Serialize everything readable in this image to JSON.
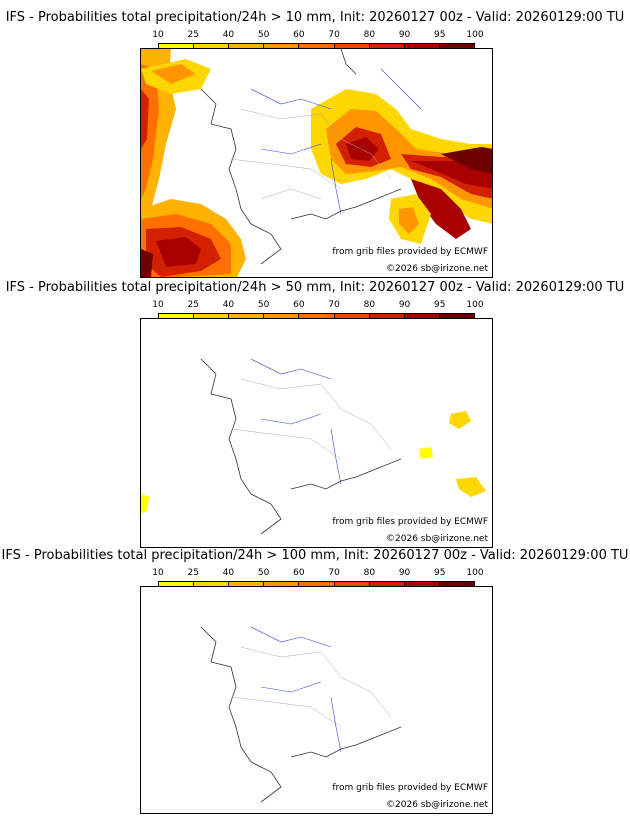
{
  "colorbar": {
    "ticks": [
      "10",
      "25",
      "40",
      "50",
      "60",
      "70",
      "80",
      "90",
      "95",
      "100"
    ],
    "colors": [
      "#ffff00",
      "#ffd700",
      "#ffb300",
      "#ff9500",
      "#ff7000",
      "#f04800",
      "#d32000",
      "#a80000",
      "#6e0000"
    ]
  },
  "credits": {
    "source": "from grib files provided by ECMWF",
    "copyright": "©2026 sb@irizone.net"
  },
  "panels": [
    {
      "title": "IFS - Probabilities total precipitation/24h > 10 mm, Init: 20260127 00z - Valid: 20260129:00 TU",
      "coverage": "widespread"
    },
    {
      "title": "IFS - Probabilities total precipitation/24h > 50 mm, Init: 20260127 00z - Valid: 20260129:00 TU",
      "coverage": "isolated"
    },
    {
      "title": "IFS - Probabilities total precipitation/24h > 100 mm, Init: 20260127 00z - Valid: 20260129:00 TU",
      "coverage": "none"
    }
  ]
}
